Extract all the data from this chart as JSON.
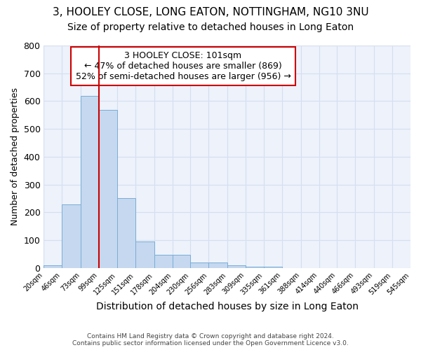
{
  "title1": "3, HOOLEY CLOSE, LONG EATON, NOTTINGHAM, NG10 3NU",
  "title2": "Size of property relative to detached houses in Long Eaton",
  "xlabel": "Distribution of detached houses by size in Long Eaton",
  "ylabel": "Number of detached properties",
  "footer1": "Contains HM Land Registry data © Crown copyright and database right 2024.",
  "footer2": "Contains public sector information licensed under the Open Government Licence v3.0.",
  "annotation_line1": "3 HOOLEY CLOSE: 101sqm",
  "annotation_line2": "← 47% of detached houses are smaller (869)",
  "annotation_line3": "52% of semi-detached houses are larger (956) →",
  "bar_edges": [
    20,
    46,
    73,
    99,
    125,
    151,
    178,
    204,
    230,
    256,
    283,
    309,
    335,
    361,
    388,
    414,
    440,
    466,
    493,
    519,
    545
  ],
  "bar_heights": [
    10,
    228,
    620,
    568,
    252,
    95,
    48,
    48,
    20,
    20,
    10,
    5,
    5,
    0,
    0,
    0,
    0,
    0,
    0,
    0
  ],
  "bar_color": "#c5d8f0",
  "bar_edge_color": "#7aadd4",
  "vline_color": "#cc0000",
  "vline_x": 99,
  "annotation_box_color": "#cc0000",
  "ylim": [
    0,
    800
  ],
  "yticks": [
    0,
    100,
    200,
    300,
    400,
    500,
    600,
    700,
    800
  ],
  "background_color": "#edf2fb",
  "grid_color": "#d4dff0",
  "title1_fontsize": 11,
  "title2_fontsize": 10,
  "xlabel_fontsize": 10,
  "ylabel_fontsize": 9,
  "annotation_fontsize": 9
}
